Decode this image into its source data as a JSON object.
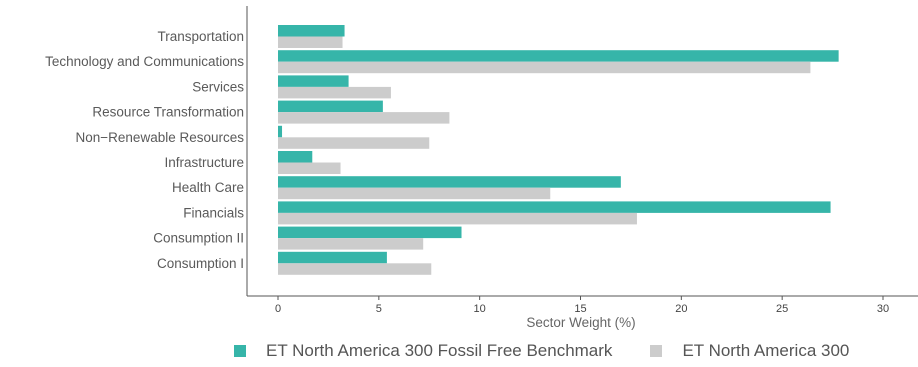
{
  "chart_data": {
    "type": "bar",
    "orientation": "horizontal",
    "categories": [
      "Transportation",
      "Technology and Communications",
      "Services",
      "Resource Transformation",
      "Non−Renewable Resources",
      "Infrastructure",
      "Health Care",
      "Financials",
      "Consumption II",
      "Consumption I"
    ],
    "series": [
      {
        "name": "ET North America 300 Fossil Free Benchmark",
        "color": "#36b5a9",
        "values": [
          3.3,
          27.8,
          3.5,
          5.2,
          0.2,
          1.7,
          17.0,
          27.4,
          9.1,
          5.4
        ]
      },
      {
        "name": "ET North America 300",
        "color": "#cccccc",
        "values": [
          3.2,
          26.4,
          5.6,
          8.5,
          7.5,
          3.1,
          13.5,
          17.8,
          7.2,
          7.6
        ]
      }
    ],
    "xlabel": "Sector Weight (%)",
    "ylabel": "",
    "xlim": [
      0,
      30
    ],
    "xticks": [
      "0",
      "5",
      "10",
      "15",
      "20",
      "25",
      "30"
    ],
    "grid": false,
    "legend_position": "bottom"
  }
}
